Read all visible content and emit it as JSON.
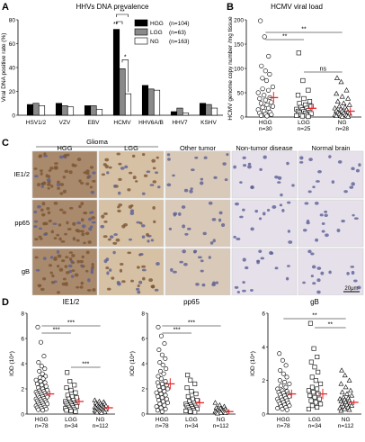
{
  "panel_letters": {
    "a": "A",
    "b": "B",
    "c": "C",
    "d": "D"
  },
  "colors": {
    "hgg": "#000000",
    "lgg": "#8a8a8a",
    "ng": "#ffffff",
    "mean": "#e8262b",
    "brown_dark": "#7b5433",
    "brown_light": "#d8c3a5",
    "blue_nuclei": "#5b5f95",
    "bg_tissue": "#ece4ec"
  },
  "chart_data": [
    {
      "type": "bar",
      "title": "HHVs DNA prevalence",
      "xlabel": "",
      "ylabel": "Viral DNA positive rate (%)",
      "ylim": [
        0,
        80
      ],
      "yticks": [
        "0",
        "20",
        "40",
        "60",
        "80"
      ],
      "categories": [
        "HSV1/2",
        "VZV",
        "EBV",
        "HCMV",
        "HHV6A/B",
        "HHV7",
        "KSHV"
      ],
      "series": [
        {
          "name": "HGG",
          "legend": "(n=104)",
          "values": [
            9,
            10,
            8,
            72,
            25,
            3,
            10
          ]
        },
        {
          "name": "LGG",
          "legend": "(n=63)",
          "values": [
            10,
            8,
            8,
            39,
            22,
            6,
            9
          ]
        },
        {
          "name": "NG",
          "legend": "(n=163)",
          "values": [
            8,
            7,
            5,
            18,
            21,
            2,
            6
          ]
        }
      ],
      "annotations": [
        "**",
        "**",
        "*"
      ]
    },
    {
      "type": "scatter",
      "title": "HCMV viral load",
      "ylabel": "HCMV genome copy number /mg tissue",
      "ylim": [
        0,
        200
      ],
      "yticks": [
        "0",
        "50",
        "100",
        "150",
        "200"
      ],
      "groups": [
        {
          "name": "HGG",
          "n": "n=30",
          "marker": "circle",
          "mean": 40,
          "sem": 8,
          "values": [
            198,
            165,
            125,
            105,
            95,
            88,
            80,
            75,
            62,
            58,
            55,
            50,
            45,
            40,
            38,
            35,
            30,
            28,
            25,
            22,
            20,
            18,
            15,
            12,
            10,
            8,
            6,
            5,
            3,
            2
          ]
        },
        {
          "name": "LGG",
          "n": "n=25",
          "marker": "square",
          "mean": 18,
          "sem": 4,
          "values": [
            132,
            75,
            55,
            45,
            38,
            32,
            28,
            25,
            22,
            20,
            18,
            16,
            15,
            13,
            12,
            11,
            10,
            9,
            8,
            7,
            5,
            4,
            3,
            2,
            1
          ]
        },
        {
          "name": "NG",
          "n": "n=28",
          "marker": "triangle",
          "mean": 12,
          "sem": 4,
          "values": [
            80,
            72,
            55,
            48,
            42,
            38,
            32,
            28,
            25,
            22,
            20,
            18,
            16,
            15,
            13,
            12,
            10,
            9,
            8,
            7,
            6,
            5,
            4,
            3,
            3,
            2,
            1,
            1
          ]
        }
      ],
      "annotations": [
        "**",
        "**",
        "ns"
      ]
    },
    {
      "type": "scatter",
      "title": "IE1/2",
      "ylabel": "IOD (10⁴)",
      "ylim": [
        0,
        8
      ],
      "yticks": [
        "0",
        "2",
        "4",
        "6",
        "8"
      ],
      "groups": [
        {
          "name": "HGG",
          "n": "n=78",
          "marker": "circle",
          "mean": 1.6,
          "sem": 0.1,
          "values": [
            6.9,
            5.7,
            4.6,
            4.1,
            3.8,
            3.6,
            3.4,
            3.2,
            3.0,
            2.9,
            2.8,
            2.7,
            2.6,
            2.5,
            2.4,
            2.3,
            2.2,
            2.1,
            2.0,
            1.9,
            1.85,
            1.8,
            1.75,
            1.7,
            1.65,
            1.6,
            1.55,
            1.5,
            1.45,
            1.4,
            1.35,
            1.3,
            1.25,
            1.2,
            1.15,
            1.1,
            1.05,
            1.0,
            0.95,
            0.9,
            0.85,
            0.8,
            0.75,
            0.7,
            0.65,
            0.6,
            0.55,
            0.5,
            0.45,
            0.4,
            0.35,
            0.3
          ]
        },
        {
          "name": "LGG",
          "n": "n=34",
          "marker": "square",
          "mean": 1.0,
          "sem": 0.15,
          "values": [
            3.3,
            2.6,
            2.3,
            2.1,
            1.9,
            1.7,
            1.5,
            1.4,
            1.3,
            1.2,
            1.1,
            1.0,
            0.95,
            0.9,
            0.85,
            0.8,
            0.75,
            0.7,
            0.65,
            0.6,
            0.55,
            0.5,
            0.45,
            0.4,
            0.35,
            0.3,
            0.25,
            0.2
          ]
        },
        {
          "name": "NG",
          "n": "n=112",
          "marker": "triangle",
          "mean": 0.5,
          "sem": 0.05,
          "values": [
            1.1,
            1.0,
            0.95,
            0.9,
            0.85,
            0.8,
            0.75,
            0.7,
            0.65,
            0.6,
            0.58,
            0.55,
            0.52,
            0.5,
            0.48,
            0.45,
            0.42,
            0.4,
            0.38,
            0.35,
            0.32,
            0.3,
            0.28,
            0.25,
            0.22,
            0.2,
            0.18,
            0.15,
            0.12,
            0.1
          ]
        }
      ],
      "annotations": [
        "***",
        "***",
        "***"
      ]
    },
    {
      "type": "scatter",
      "title": "pp65",
      "ylabel": "IOD (10⁴)",
      "ylim": [
        0,
        8
      ],
      "yticks": [
        "0",
        "2",
        "4",
        "6",
        "8"
      ],
      "groups": [
        {
          "name": "HGG",
          "n": "n=78",
          "marker": "circle",
          "mean": 2.4,
          "sem": 0.3,
          "values": [
            6.9,
            6.2,
            5.6,
            5.1,
            4.7,
            4.4,
            4.1,
            3.9,
            3.6,
            3.4,
            3.2,
            3.0,
            2.8,
            2.6,
            2.5,
            2.4,
            2.3,
            2.2,
            2.1,
            2.0,
            1.9,
            1.8,
            1.7,
            1.6,
            1.5,
            1.4,
            1.3,
            1.2,
            1.1,
            1.0,
            0.9,
            0.8,
            0.7,
            0.6,
            0.5,
            0.4,
            0.3,
            0.2
          ]
        },
        {
          "name": "LGG",
          "n": "n=34",
          "marker": "square",
          "mean": 0.9,
          "sem": 0.2,
          "values": [
            3.1,
            2.7,
            2.4,
            2.1,
            1.8,
            1.6,
            1.4,
            1.2,
            1.1,
            1.0,
            0.9,
            0.8,
            0.75,
            0.7,
            0.65,
            0.6,
            0.55,
            0.5,
            0.45,
            0.4,
            0.35,
            0.3,
            0.25,
            0.2,
            0.15
          ]
        },
        {
          "name": "NG",
          "n": "n=112",
          "marker": "triangle",
          "mean": 0.2,
          "sem": 0.04,
          "values": [
            0.9,
            0.7,
            0.6,
            0.5,
            0.45,
            0.4,
            0.35,
            0.3,
            0.28,
            0.25,
            0.22,
            0.2,
            0.18,
            0.15,
            0.12,
            0.1,
            0.08,
            0.05
          ]
        }
      ],
      "annotations": [
        "***",
        "***"
      ]
    },
    {
      "type": "scatter",
      "title": "gB",
      "ylabel": "IOD (10⁴)",
      "ylim": [
        0,
        6
      ],
      "yticks": [
        "0",
        "2",
        "4",
        "6"
      ],
      "groups": [
        {
          "name": "HGG",
          "n": "n=78",
          "marker": "circle",
          "mean": 1.2,
          "sem": 0.15,
          "values": [
            3.6,
            3.2,
            2.9,
            2.6,
            2.4,
            2.2,
            2.0,
            1.9,
            1.8,
            1.7,
            1.6,
            1.5,
            1.4,
            1.35,
            1.3,
            1.25,
            1.2,
            1.15,
            1.1,
            1.05,
            1.0,
            0.95,
            0.9,
            0.85,
            0.8,
            0.75,
            0.7,
            0.65,
            0.6,
            0.55,
            0.5,
            0.45,
            0.4,
            0.35,
            0.3,
            0.25
          ]
        },
        {
          "name": "LGG",
          "n": "n=34",
          "marker": "square",
          "mean": 1.2,
          "sem": 0.2,
          "values": [
            5.4,
            3.9,
            3.4,
            3.1,
            2.8,
            2.5,
            2.2,
            2.0,
            1.8,
            1.6,
            1.5,
            1.4,
            1.3,
            1.2,
            1.1,
            1.0,
            0.9,
            0.8,
            0.7,
            0.6,
            0.5,
            0.4,
            0.3
          ]
        },
        {
          "name": "NG",
          "n": "n=112",
          "marker": "triangle",
          "mean": 0.7,
          "sem": 0.05,
          "values": [
            2.6,
            2.3,
            2.0,
            1.8,
            1.6,
            1.4,
            1.3,
            1.2,
            1.1,
            1.0,
            0.95,
            0.9,
            0.85,
            0.8,
            0.75,
            0.7,
            0.65,
            0.6,
            0.55,
            0.5,
            0.45,
            0.4,
            0.35,
            0.3,
            0.25,
            0.2
          ]
        }
      ],
      "annotations": [
        "**",
        "**"
      ]
    }
  ],
  "micro": {
    "column_groups": [
      {
        "label": "Glioma"
      }
    ],
    "columns": [
      "HGG",
      "LGG",
      "Other tumor",
      "Non-tumor disease",
      "Normal brain"
    ],
    "rows": [
      "IE1/2",
      "pp65",
      "gB"
    ],
    "scale_bar": "20μm"
  }
}
